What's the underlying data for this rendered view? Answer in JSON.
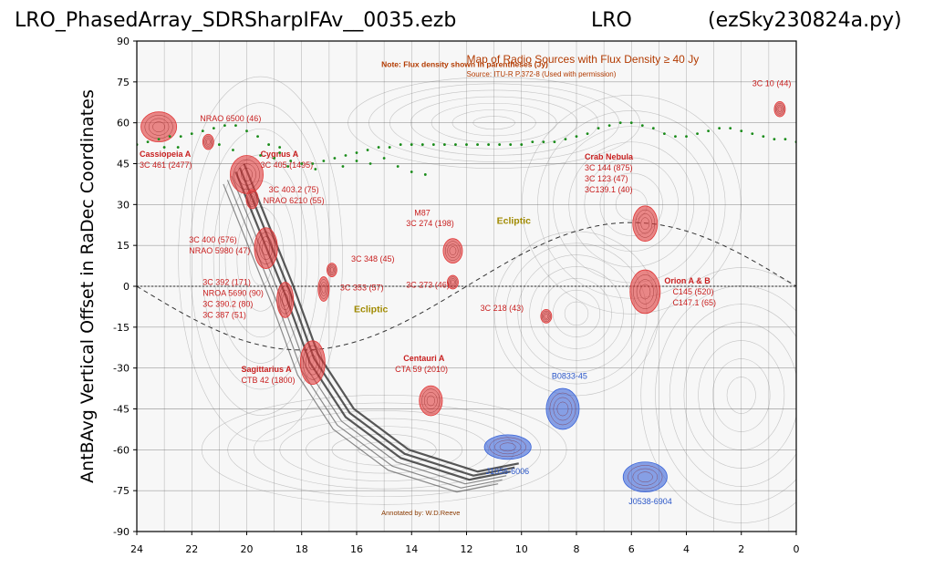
{
  "header": {
    "left": "LRO_PhasedArray_SDRSharpIFAv__0035.ezb",
    "middle": "LRO",
    "right": "(ezSky230824a.py)"
  },
  "chart_data": {
    "type": "scatter",
    "ylabel": "AntBAvg Vertical Offset in RaDec Coordinates",
    "xlabel": "",
    "xlim": [
      24,
      0
    ],
    "ylim": [
      -90,
      90
    ],
    "xticks": [
      "24",
      "22",
      "20",
      "18",
      "16",
      "14",
      "12",
      "10",
      "8",
      "6",
      "4",
      "2",
      "0"
    ],
    "yticks": [
      "90",
      "75",
      "60",
      "45",
      "30",
      "15",
      "0",
      "-15",
      "-30",
      "-45",
      "-60",
      "-75",
      "-90"
    ],
    "series": [
      {
        "color": "#1a8c1a",
        "points": [
          [
            24.0,
            52
          ],
          [
            23.6,
            53
          ],
          [
            23.2,
            54
          ],
          [
            22.8,
            55
          ],
          [
            22.4,
            55
          ],
          [
            22.0,
            56
          ],
          [
            21.6,
            57
          ],
          [
            21.2,
            58
          ],
          [
            20.8,
            59
          ],
          [
            20.4,
            59
          ],
          [
            20.0,
            57
          ],
          [
            19.6,
            55
          ],
          [
            19.2,
            52
          ],
          [
            18.8,
            49
          ],
          [
            18.4,
            46
          ],
          [
            18.0,
            45
          ],
          [
            17.6,
            45
          ],
          [
            17.2,
            46
          ],
          [
            16.8,
            47
          ],
          [
            16.4,
            48
          ],
          [
            16.0,
            49
          ],
          [
            15.6,
            50
          ],
          [
            15.2,
            51
          ],
          [
            14.8,
            51
          ],
          [
            14.4,
            52
          ],
          [
            14.0,
            52
          ],
          [
            13.6,
            52
          ],
          [
            13.2,
            52
          ],
          [
            12.8,
            52
          ],
          [
            12.4,
            52
          ],
          [
            12.0,
            52
          ],
          [
            11.6,
            52
          ],
          [
            11.2,
            52
          ],
          [
            10.8,
            52
          ],
          [
            10.4,
            52
          ],
          [
            10.0,
            52
          ],
          [
            9.6,
            53
          ],
          [
            9.2,
            53
          ],
          [
            8.8,
            53
          ],
          [
            8.4,
            54
          ],
          [
            8.0,
            55
          ],
          [
            7.6,
            56
          ],
          [
            7.2,
            58
          ],
          [
            6.8,
            59
          ],
          [
            6.4,
            60
          ],
          [
            6.0,
            60
          ],
          [
            5.6,
            59
          ],
          [
            5.2,
            58
          ],
          [
            4.8,
            56
          ],
          [
            4.4,
            55
          ],
          [
            4.0,
            55
          ],
          [
            3.6,
            56
          ],
          [
            3.2,
            57
          ],
          [
            2.8,
            58
          ],
          [
            2.4,
            58
          ],
          [
            2.0,
            57
          ],
          [
            1.6,
            56
          ],
          [
            1.2,
            55
          ],
          [
            0.8,
            54
          ],
          [
            0.4,
            54
          ],
          [
            0.0,
            53
          ],
          [
            21.0,
            52
          ],
          [
            20.5,
            50
          ],
          [
            19.5,
            48
          ],
          [
            18.5,
            44
          ],
          [
            17.5,
            43
          ],
          [
            16.5,
            44
          ],
          [
            15.5,
            45
          ],
          [
            14.5,
            44
          ],
          [
            14.0,
            42
          ],
          [
            13.5,
            41
          ],
          [
            22.5,
            51
          ],
          [
            23.0,
            51
          ],
          [
            16.0,
            46
          ],
          [
            15.0,
            47
          ],
          [
            18.8,
            51
          ],
          [
            19.0,
            47
          ]
        ]
      }
    ],
    "map_title": "Map of Radio Sources with Flux Density ≥ 40 Jy",
    "map_source": "Source: ITU-R P.372-8 (Used with permission)",
    "map_note": "Note: Flux density shown in parentheses (Jy)",
    "map_credit": "Annotated by: W.D.Reeve",
    "ecliptic_label": "Ecliptic",
    "radio_sources": [
      {
        "ra": 23.2,
        "dec": 58.5,
        "rx": 0.65,
        "ry": 5.5,
        "color": "#e03a3a",
        "labels": [
          {
            "text": "Cassiopeia A",
            "ra": 23.9,
            "dec": 47.5,
            "bold": true
          },
          {
            "text": "3C 461 (2477)",
            "ra": 23.9,
            "dec": 43.5
          }
        ]
      },
      {
        "ra": 21.4,
        "dec": 53,
        "rx": 0.2,
        "ry": 2.8,
        "color": "#e03a3a",
        "labels": []
      },
      {
        "ra": 20.0,
        "dec": 41,
        "rx": 0.6,
        "ry": 7,
        "color": "#e03a3a",
        "labels": [
          {
            "text": "NRAO 6500 (46)",
            "ra": 21.7,
            "dec": 60.5
          },
          {
            "text": "Cygnus A",
            "ra": 19.5,
            "dec": 47.5,
            "bold": true
          },
          {
            "text": "3C 405 (1495)",
            "ra": 19.5,
            "dec": 43.5
          },
          {
            "text": "3C 403.2 (75)",
            "ra": 19.2,
            "dec": 34.5
          },
          {
            "text": "NRAO 6210 (55)",
            "ra": 19.4,
            "dec": 30.5
          }
        ]
      },
      {
        "ra": 19.8,
        "dec": 32,
        "rx": 0.22,
        "ry": 3.5,
        "color": "#e03a3a",
        "labels": []
      },
      {
        "ra": 19.3,
        "dec": 14,
        "rx": 0.42,
        "ry": 7.5,
        "color": "#e03a3a",
        "labels": [
          {
            "text": "3C 400 (576)",
            "ra": 22.1,
            "dec": 16
          },
          {
            "text": "NRAO 5980 (47)",
            "ra": 22.1,
            "dec": 12
          }
        ]
      },
      {
        "ra": 18.6,
        "dec": -5,
        "rx": 0.3,
        "ry": 6.5,
        "color": "#e03a3a",
        "labels": [
          {
            "text": "3C 392 (171)",
            "ra": 21.6,
            "dec": 0.5
          },
          {
            "text": "NROA 5690 (90)",
            "ra": 21.6,
            "dec": -3.5
          },
          {
            "text": "3C 390.2 (80)",
            "ra": 21.6,
            "dec": -7.5
          },
          {
            "text": "3C 387 (51)",
            "ra": 21.6,
            "dec": -11.5
          }
        ]
      },
      {
        "ra": 17.6,
        "dec": -28,
        "rx": 0.45,
        "ry": 8,
        "color": "#e03a3a",
        "labels": [
          {
            "text": "Sagittarius A",
            "ra": 20.2,
            "dec": -31.5,
            "bold": true
          },
          {
            "text": "CTB 42 (1800)",
            "ra": 20.2,
            "dec": -35.5
          }
        ]
      },
      {
        "ra": 16.9,
        "dec": 6,
        "rx": 0.18,
        "ry": 2.5,
        "color": "#e03a3a",
        "labels": [
          {
            "text": "3C 348 (45)",
            "ra": 16.2,
            "dec": 9
          }
        ]
      },
      {
        "ra": 17.2,
        "dec": -1,
        "rx": 0.2,
        "ry": 4.5,
        "color": "#e03a3a",
        "labels": [
          {
            "text": "3C 353 (57)",
            "ra": 16.6,
            "dec": -1.5
          }
        ]
      },
      {
        "ra": 12.5,
        "dec": 13,
        "rx": 0.35,
        "ry": 4.5,
        "color": "#e03a3a",
        "labels": [
          {
            "text": "M87",
            "ra": 13.9,
            "dec": 26
          },
          {
            "text": "3C 274 (198)",
            "ra": 14.2,
            "dec": 22
          }
        ]
      },
      {
        "ra": 12.5,
        "dec": 1.5,
        "rx": 0.2,
        "ry": 2.5,
        "color": "#e03a3a",
        "labels": [
          {
            "text": "3C 273 (46)",
            "ra": 14.2,
            "dec": -0.5
          }
        ]
      },
      {
        "ra": 13.3,
        "dec": -42,
        "rx": 0.42,
        "ry": 5.5,
        "color": "#e03a3a",
        "labels": [
          {
            "text": "Centauri A",
            "ra": 14.3,
            "dec": -27.5,
            "bold": true
          },
          {
            "text": "CTA 59 (2010)",
            "ra": 14.6,
            "dec": -31.5
          }
        ]
      },
      {
        "ra": 9.1,
        "dec": -11,
        "rx": 0.2,
        "ry": 2.5,
        "color": "#e03a3a",
        "labels": [
          {
            "text": "3C 218 (43)",
            "ra": 11.5,
            "dec": -9
          }
        ]
      },
      {
        "ra": 5.5,
        "dec": 23,
        "rx": 0.45,
        "ry": 6.5,
        "color": "#e03a3a",
        "labels": [
          {
            "text": "Crab Nebula",
            "ra": 7.7,
            "dec": 46.5,
            "bold": true
          },
          {
            "text": "3C 144 (875)",
            "ra": 7.7,
            "dec": 42.5
          },
          {
            "text": "3C 123 (47)",
            "ra": 7.7,
            "dec": 38.5
          },
          {
            "text": "3C139.1 (40)",
            "ra": 7.7,
            "dec": 34.5
          }
        ]
      },
      {
        "ra": 5.5,
        "dec": -2,
        "rx": 0.55,
        "ry": 8,
        "color": "#e03a3a",
        "labels": [
          {
            "text": "Orion A & B",
            "ra": 4.8,
            "dec": 1,
            "bold": true
          },
          {
            "text": "C145 (520)",
            "ra": 4.5,
            "dec": -3
          },
          {
            "text": "C147.1 (65)",
            "ra": 4.5,
            "dec": -7
          }
        ]
      },
      {
        "ra": 0.6,
        "dec": 65,
        "rx": 0.2,
        "ry": 2.8,
        "color": "#e03a3a",
        "labels": [
          {
            "text": "3C 10 (44)",
            "ra": 1.6,
            "dec": 73.5
          }
        ]
      },
      {
        "ra": 8.5,
        "dec": -45,
        "rx": 0.6,
        "ry": 7.5,
        "color": "#3a64d8",
        "labels": [
          {
            "text": "B0833-45",
            "ra": 8.9,
            "dec": -34
          }
        ]
      },
      {
        "ra": 10.5,
        "dec": -59,
        "rx": 0.85,
        "ry": 4.5,
        "color": "#3a64d8",
        "labels": [
          {
            "text": "J1056-6006",
            "ra": 11.3,
            "dec": -69
          }
        ]
      },
      {
        "ra": 5.5,
        "dec": -70,
        "rx": 0.8,
        "ry": 5.5,
        "color": "#3a64d8",
        "labels": [
          {
            "text": "J0538-6904",
            "ra": 6.1,
            "dec": -80
          }
        ]
      }
    ]
  }
}
